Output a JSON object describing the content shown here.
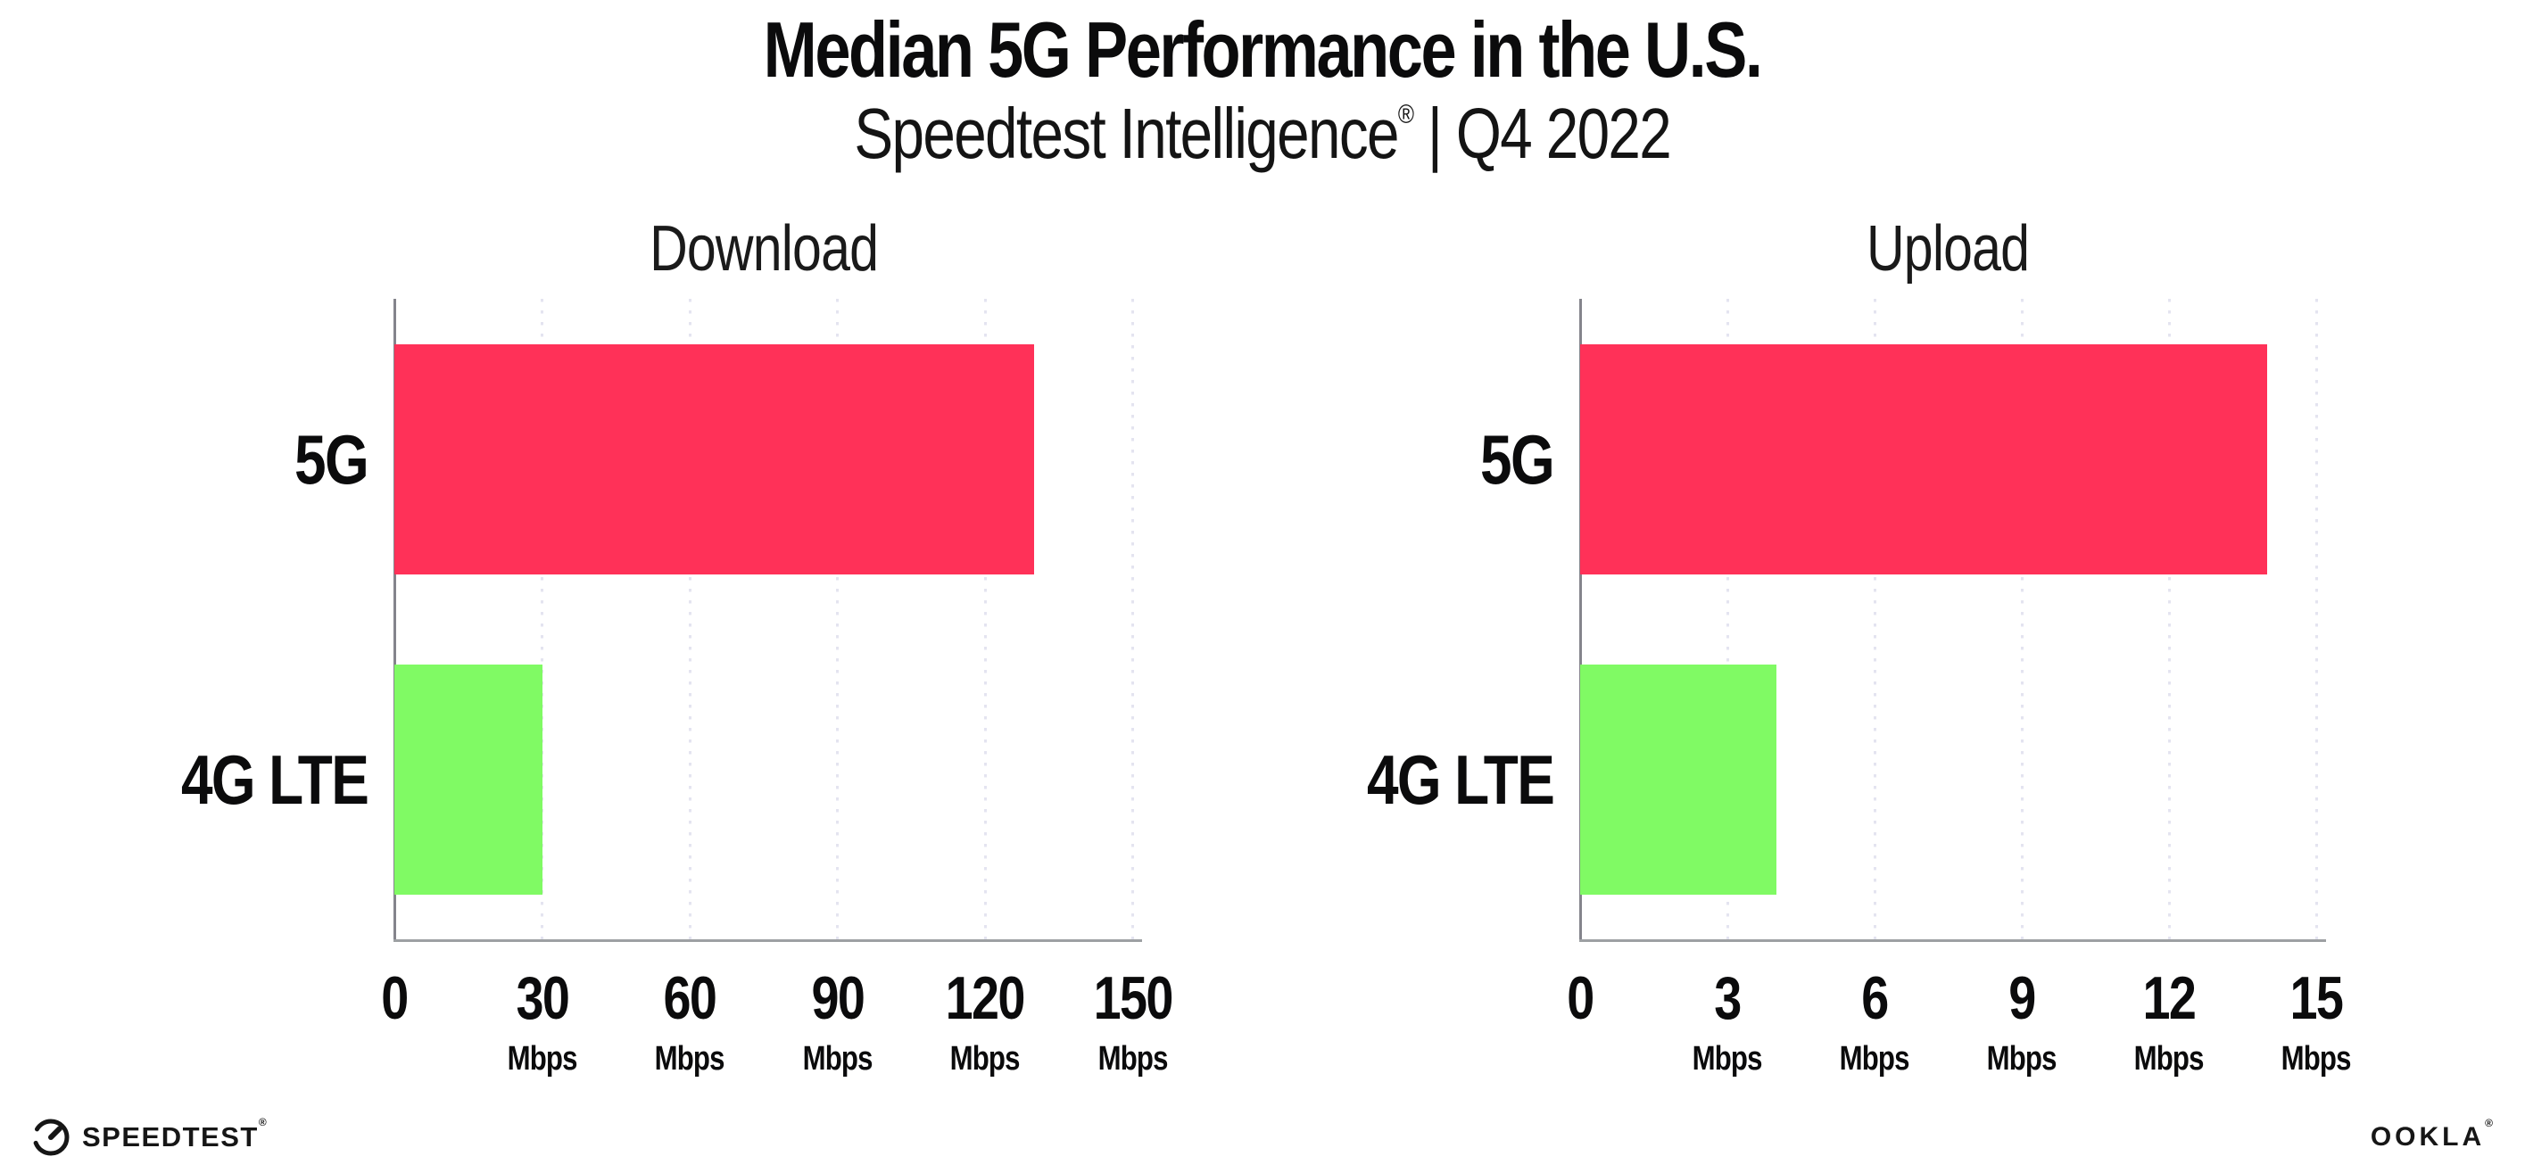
{
  "header": {
    "title": "Median 5G Performance in the U.S.",
    "subtitle_brand": "Speedtest Intelligence",
    "subtitle_reg": "®",
    "subtitle_rest": " | Q4 2022"
  },
  "colors": {
    "bar_5g": "#FF3158",
    "bar_4g_lte": "#80FA64",
    "gridline": "#E4E4F0",
    "x_axis": "#9DA0A3",
    "y_axis": "#84848C",
    "text": "#0B0B0C"
  },
  "chart_data": [
    {
      "type": "bar",
      "orientation": "horizontal",
      "title": "Download",
      "categories": [
        "5G",
        "4G LTE"
      ],
      "values": [
        130,
        30
      ],
      "unit": "Mbps",
      "xlim": [
        0,
        150
      ],
      "ticks": [
        0,
        30,
        60,
        90,
        120,
        150
      ],
      "grid": true,
      "legend": "none",
      "bar_colors": [
        "#FF3158",
        "#80FA64"
      ]
    },
    {
      "type": "bar",
      "orientation": "horizontal",
      "title": "Upload",
      "categories": [
        "5G",
        "4G LTE"
      ],
      "values": [
        14,
        4
      ],
      "unit": "Mbps",
      "xlim": [
        0,
        15
      ],
      "ticks": [
        0,
        3,
        6,
        9,
        12,
        15
      ],
      "grid": true,
      "legend": "none",
      "bar_colors": [
        "#FF3158",
        "#80FA64"
      ]
    }
  ],
  "footer": {
    "speedtest_label": "SPEEDTEST",
    "speedtest_reg": "®",
    "ookla_label": "OOKLA",
    "ookla_reg": "®"
  }
}
